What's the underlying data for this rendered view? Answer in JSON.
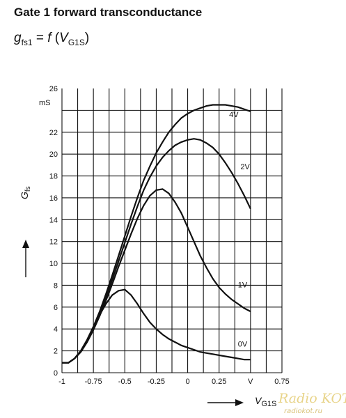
{
  "header": {
    "title": "Gate 1 forward transconductance",
    "formula_lhs": "g",
    "formula_lhs_sub": "fs1",
    "formula_eq": " = ",
    "formula_f": "f",
    "formula_open": " (",
    "formula_v": "V",
    "formula_v_sub": "G1S",
    "formula_close": ")"
  },
  "chart_data": {
    "type": "line",
    "ylabel": "G",
    "ylabel_sub": "fs",
    "yunit": "mS",
    "xlabel": "V",
    "xlabel_sub": "G1S",
    "xunit": "V",
    "xlim": [
      -1,
      0.75
    ],
    "ylim": [
      0,
      26
    ],
    "x_ticks": [
      "-1",
      "-0.75",
      "-0.5",
      "-0.25",
      "0",
      "0.25",
      "0.75"
    ],
    "y_ticks": [
      "0",
      "2",
      "4",
      "6",
      "8",
      "10",
      "12",
      "14",
      "16",
      "18",
      "20",
      "22",
      "26"
    ],
    "grid": true,
    "series": [
      {
        "name": "4V",
        "x": [
          -1.0,
          -0.95,
          -0.9,
          -0.85,
          -0.8,
          -0.75,
          -0.7,
          -0.65,
          -0.6,
          -0.55,
          -0.5,
          -0.45,
          -0.4,
          -0.35,
          -0.3,
          -0.25,
          -0.2,
          -0.15,
          -0.1,
          -0.05,
          0.0,
          0.05,
          0.1,
          0.15,
          0.2,
          0.25,
          0.3,
          0.35,
          0.4,
          0.45,
          0.5
        ],
        "y": [
          0.9,
          0.9,
          1.3,
          2.0,
          3.0,
          4.2,
          5.6,
          7.2,
          8.9,
          10.7,
          12.5,
          14.3,
          16.0,
          17.6,
          18.9,
          20.1,
          21.1,
          22.0,
          22.7,
          23.3,
          23.7,
          24.0,
          24.2,
          24.4,
          24.5,
          24.5,
          24.5,
          24.4,
          24.3,
          24.1,
          23.9
        ]
      },
      {
        "name": "2V",
        "x": [
          -1.0,
          -0.95,
          -0.9,
          -0.85,
          -0.8,
          -0.75,
          -0.7,
          -0.65,
          -0.6,
          -0.55,
          -0.5,
          -0.45,
          -0.4,
          -0.35,
          -0.3,
          -0.25,
          -0.2,
          -0.15,
          -0.1,
          -0.05,
          0.0,
          0.05,
          0.1,
          0.15,
          0.2,
          0.25,
          0.3,
          0.35,
          0.4,
          0.45,
          0.5
        ],
        "y": [
          0.9,
          0.9,
          1.3,
          2.0,
          2.9,
          4.0,
          5.4,
          6.9,
          8.5,
          10.2,
          11.9,
          13.6,
          15.2,
          16.7,
          17.9,
          18.9,
          19.7,
          20.3,
          20.8,
          21.1,
          21.3,
          21.4,
          21.3,
          21.0,
          20.6,
          20.0,
          19.2,
          18.3,
          17.3,
          16.2,
          15.0
        ]
      },
      {
        "name": "1V",
        "x": [
          -1.0,
          -0.95,
          -0.9,
          -0.85,
          -0.8,
          -0.75,
          -0.7,
          -0.65,
          -0.6,
          -0.55,
          -0.5,
          -0.45,
          -0.4,
          -0.35,
          -0.3,
          -0.25,
          -0.2,
          -0.15,
          -0.1,
          -0.05,
          0.0,
          0.05,
          0.1,
          0.15,
          0.2,
          0.25,
          0.3,
          0.35,
          0.4,
          0.45,
          0.5
        ],
        "y": [
          0.9,
          0.9,
          1.3,
          1.9,
          2.8,
          3.9,
          5.2,
          6.6,
          8.1,
          9.7,
          11.2,
          12.7,
          14.1,
          15.3,
          16.2,
          16.7,
          16.8,
          16.4,
          15.6,
          14.6,
          13.3,
          12.0,
          10.7,
          9.6,
          8.6,
          7.8,
          7.2,
          6.7,
          6.3,
          5.9,
          5.6
        ]
      },
      {
        "name": "0V",
        "x": [
          -1.0,
          -0.95,
          -0.9,
          -0.85,
          -0.8,
          -0.75,
          -0.7,
          -0.65,
          -0.6,
          -0.55,
          -0.5,
          -0.45,
          -0.4,
          -0.35,
          -0.3,
          -0.25,
          -0.2,
          -0.15,
          -0.1,
          -0.05,
          0.0,
          0.05,
          0.1,
          0.15,
          0.2,
          0.25,
          0.3,
          0.35,
          0.4,
          0.45,
          0.5
        ],
        "y": [
          0.9,
          0.9,
          1.3,
          2.0,
          3.0,
          4.2,
          5.3,
          6.3,
          7.1,
          7.5,
          7.6,
          7.1,
          6.3,
          5.4,
          4.6,
          4.0,
          3.5,
          3.1,
          2.8,
          2.5,
          2.3,
          2.1,
          1.9,
          1.8,
          1.7,
          1.6,
          1.5,
          1.4,
          1.3,
          1.2,
          1.2
        ]
      }
    ]
  },
  "watermark": {
    "brand": "Radio KOT",
    "site": "radiokot.ru"
  }
}
